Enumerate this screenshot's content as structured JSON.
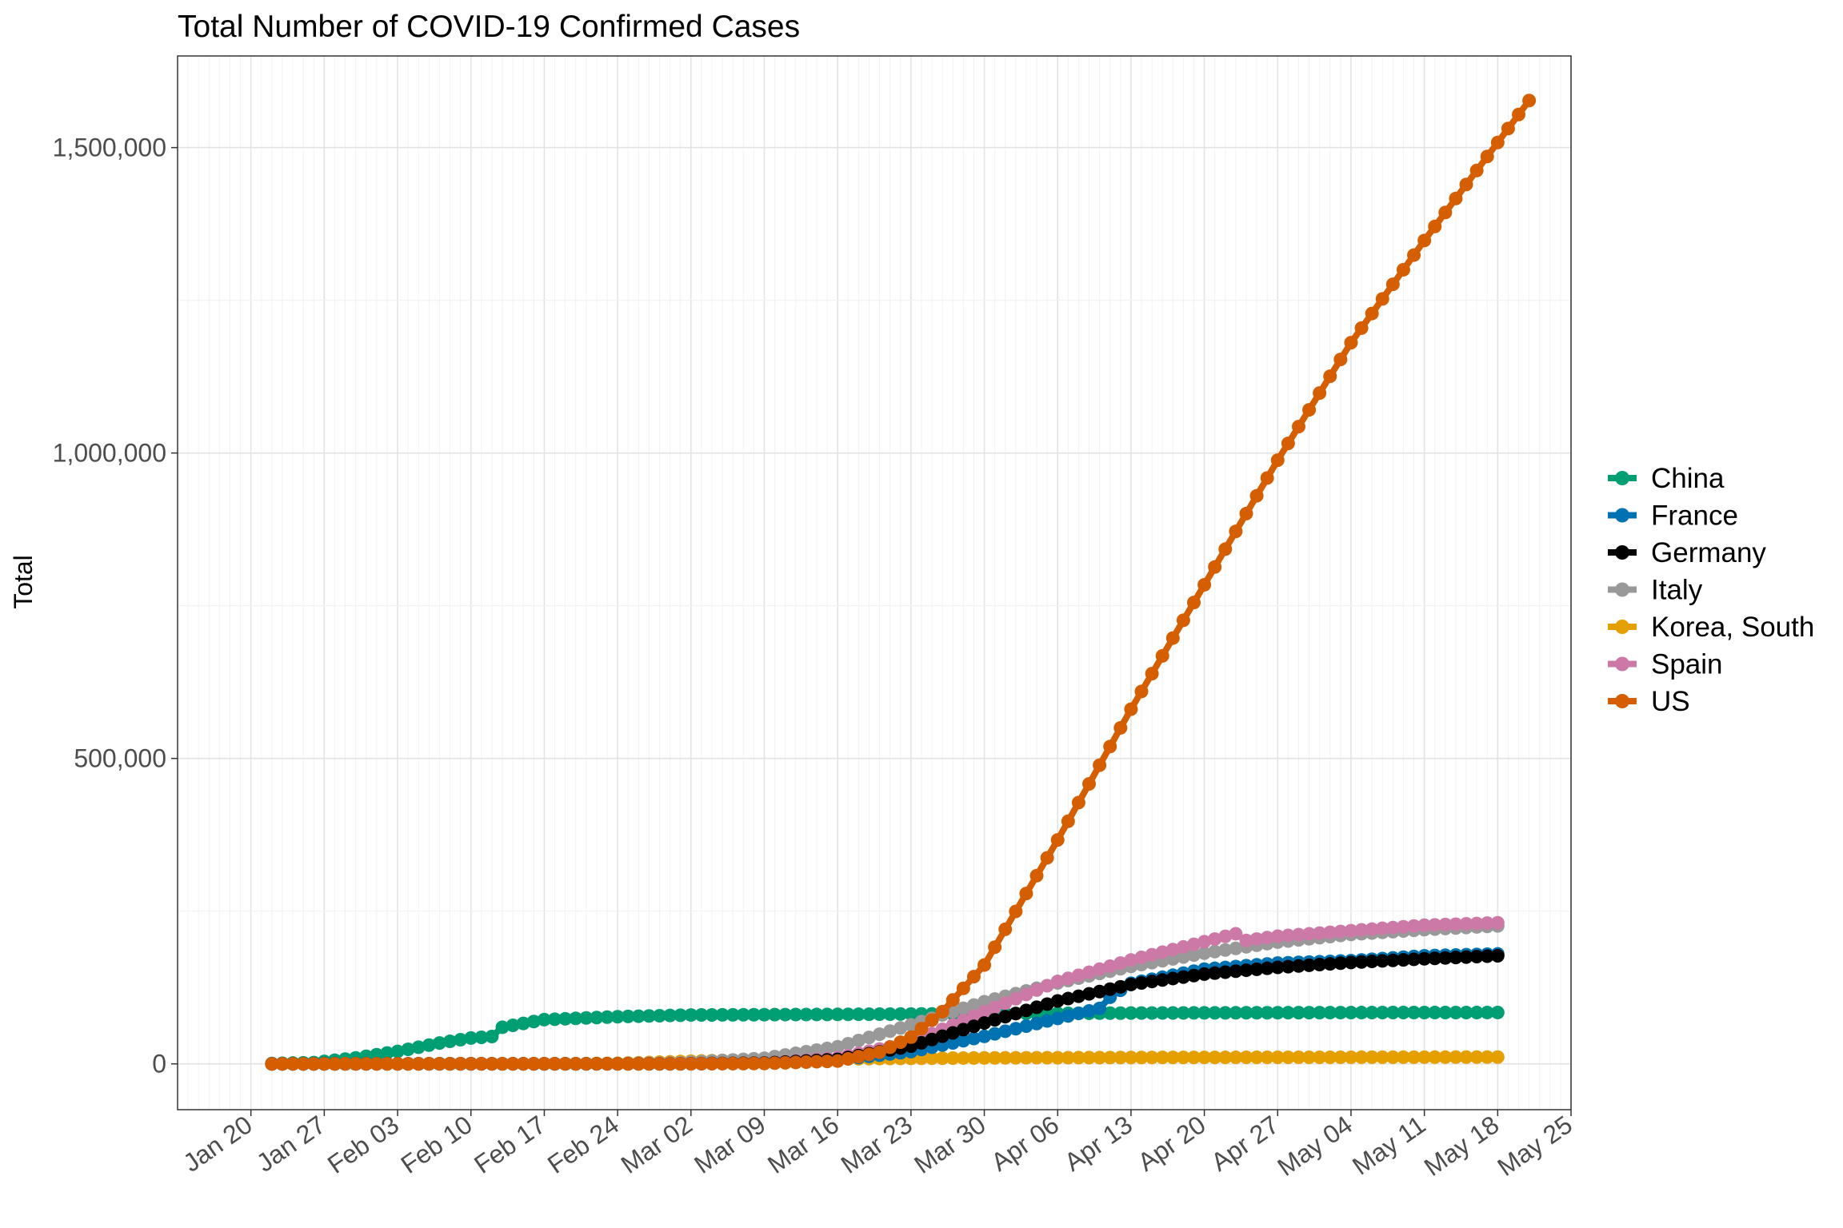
{
  "chart_data": {
    "type": "line",
    "title": "Total Number of COVID-19 Confirmed Cases",
    "xlabel": "",
    "ylabel": "Total",
    "x_axis": {
      "start_date": "2020-01-13",
      "end_date": "2020-05-25",
      "ticks": [
        "Jan 20",
        "Jan 27",
        "Feb 03",
        "Feb 10",
        "Feb 17",
        "Feb 24",
        "Mar 02",
        "Mar 09",
        "Mar 16",
        "Mar 23",
        "Mar 30",
        "Apr 06",
        "Apr 13",
        "Apr 20",
        "Apr 27",
        "May 04",
        "May 11",
        "May 18",
        "May 25"
      ],
      "tick_dates": [
        "2020-01-20",
        "2020-01-27",
        "2020-02-03",
        "2020-02-10",
        "2020-02-17",
        "2020-02-24",
        "2020-03-02",
        "2020-03-09",
        "2020-03-16",
        "2020-03-23",
        "2020-03-30",
        "2020-04-06",
        "2020-04-13",
        "2020-04-20",
        "2020-04-27",
        "2020-05-04",
        "2020-05-11",
        "2020-05-18",
        "2020-05-25"
      ]
    },
    "y_axis": {
      "ylim": [
        -75000,
        1650000
      ],
      "ticks": [
        0,
        500000,
        1000000,
        1500000
      ],
      "tick_labels": [
        "0",
        "500,000",
        "1,000,000",
        "1,500,000"
      ]
    },
    "grid": true,
    "legend_position": "right",
    "series": [
      {
        "name": "China",
        "color": "#009E73",
        "points": [
          [
            "2020-01-22",
            548
          ],
          [
            "2020-01-26",
            2116
          ],
          [
            "2020-01-30",
            9700
          ],
          [
            "2020-02-03",
            20400
          ],
          [
            "2020-02-07",
            34100
          ],
          [
            "2020-02-10",
            42300
          ],
          [
            "2020-02-12",
            44700
          ],
          [
            "2020-02-13",
            59900
          ],
          [
            "2020-02-17",
            72400
          ],
          [
            "2020-02-24",
            77200
          ],
          [
            "2020-03-02",
            80000
          ],
          [
            "2020-03-16",
            81000
          ],
          [
            "2020-04-01",
            82400
          ],
          [
            "2020-04-17",
            83400
          ],
          [
            "2020-05-01",
            83900
          ],
          [
            "2020-05-18",
            84100
          ]
        ]
      },
      {
        "name": "France",
        "color": "#0072B2",
        "points": [
          [
            "2020-01-22",
            0
          ],
          [
            "2020-03-01",
            130
          ],
          [
            "2020-03-09",
            1200
          ],
          [
            "2020-03-16",
            6600
          ],
          [
            "2020-03-23",
            20100
          ],
          [
            "2020-03-30",
            45000
          ],
          [
            "2020-04-06",
            74400
          ],
          [
            "2020-04-10",
            90800
          ],
          [
            "2020-04-11",
            109000
          ],
          [
            "2020-04-13",
            132000
          ],
          [
            "2020-04-20",
            155000
          ],
          [
            "2020-04-27",
            165000
          ],
          [
            "2020-05-04",
            169000
          ],
          [
            "2020-05-11",
            177000
          ],
          [
            "2020-05-18",
            180000
          ]
        ]
      },
      {
        "name": "Germany",
        "color": "#000000",
        "points": [
          [
            "2020-01-22",
            0
          ],
          [
            "2020-03-01",
            130
          ],
          [
            "2020-03-09",
            1200
          ],
          [
            "2020-03-16",
            7300
          ],
          [
            "2020-03-23",
            29000
          ],
          [
            "2020-03-30",
            66900
          ],
          [
            "2020-04-06",
            103000
          ],
          [
            "2020-04-13",
            130000
          ],
          [
            "2020-04-20",
            147000
          ],
          [
            "2020-04-27",
            158000
          ],
          [
            "2020-05-04",
            166000
          ],
          [
            "2020-05-11",
            172000
          ],
          [
            "2020-05-18",
            177000
          ]
        ]
      },
      {
        "name": "Italy",
        "color": "#999999",
        "points": [
          [
            "2020-01-22",
            0
          ],
          [
            "2020-02-22",
            62
          ],
          [
            "2020-03-01",
            1700
          ],
          [
            "2020-03-09",
            9200
          ],
          [
            "2020-03-16",
            27900
          ],
          [
            "2020-03-23",
            63900
          ],
          [
            "2020-03-30",
            101700
          ],
          [
            "2020-04-06",
            132500
          ],
          [
            "2020-04-13",
            159500
          ],
          [
            "2020-04-20",
            181200
          ],
          [
            "2020-04-27",
            199400
          ],
          [
            "2020-05-04",
            211900
          ],
          [
            "2020-05-11",
            219800
          ],
          [
            "2020-05-18",
            225900
          ]
        ]
      },
      {
        "name": "Korea, South",
        "color": "#E69F00",
        "points": [
          [
            "2020-01-22",
            1
          ],
          [
            "2020-02-18",
            31
          ],
          [
            "2020-02-24",
            833
          ],
          [
            "2020-03-02",
            4300
          ],
          [
            "2020-03-09",
            7500
          ],
          [
            "2020-03-16",
            8200
          ],
          [
            "2020-03-23",
            9000
          ],
          [
            "2020-04-01",
            9900
          ],
          [
            "2020-04-18",
            10600
          ],
          [
            "2020-05-04",
            10800
          ],
          [
            "2020-05-18",
            11100
          ]
        ]
      },
      {
        "name": "Spain",
        "color": "#CC79A7",
        "points": [
          [
            "2020-01-22",
            0
          ],
          [
            "2020-03-01",
            84
          ],
          [
            "2020-03-09",
            1200
          ],
          [
            "2020-03-16",
            9900
          ],
          [
            "2020-03-23",
            35100
          ],
          [
            "2020-03-30",
            85200
          ],
          [
            "2020-04-06",
            135000
          ],
          [
            "2020-04-13",
            170000
          ],
          [
            "2020-04-20",
            200000
          ],
          [
            "2020-04-23",
            213000
          ],
          [
            "2020-04-24",
            202000
          ],
          [
            "2020-04-27",
            209000
          ],
          [
            "2020-05-04",
            218000
          ],
          [
            "2020-05-11",
            227000
          ],
          [
            "2020-05-18",
            231000
          ]
        ]
      },
      {
        "name": "US",
        "color": "#D55E00",
        "points": [
          [
            "2020-01-22",
            1
          ],
          [
            "2020-03-01",
            75
          ],
          [
            "2020-03-09",
            600
          ],
          [
            "2020-03-16",
            4600
          ],
          [
            "2020-03-20",
            19100
          ],
          [
            "2020-03-23",
            43700
          ],
          [
            "2020-03-26",
            85500
          ],
          [
            "2020-03-30",
            161800
          ],
          [
            "2020-04-06",
            366600
          ],
          [
            "2020-04-13",
            580600
          ],
          [
            "2020-04-20",
            784300
          ],
          [
            "2020-04-27",
            988200
          ],
          [
            "2020-05-04",
            1180600
          ],
          [
            "2020-05-11",
            1347900
          ],
          [
            "2020-05-18",
            1508300
          ],
          [
            "2020-05-21",
            1577000
          ]
        ]
      }
    ]
  }
}
